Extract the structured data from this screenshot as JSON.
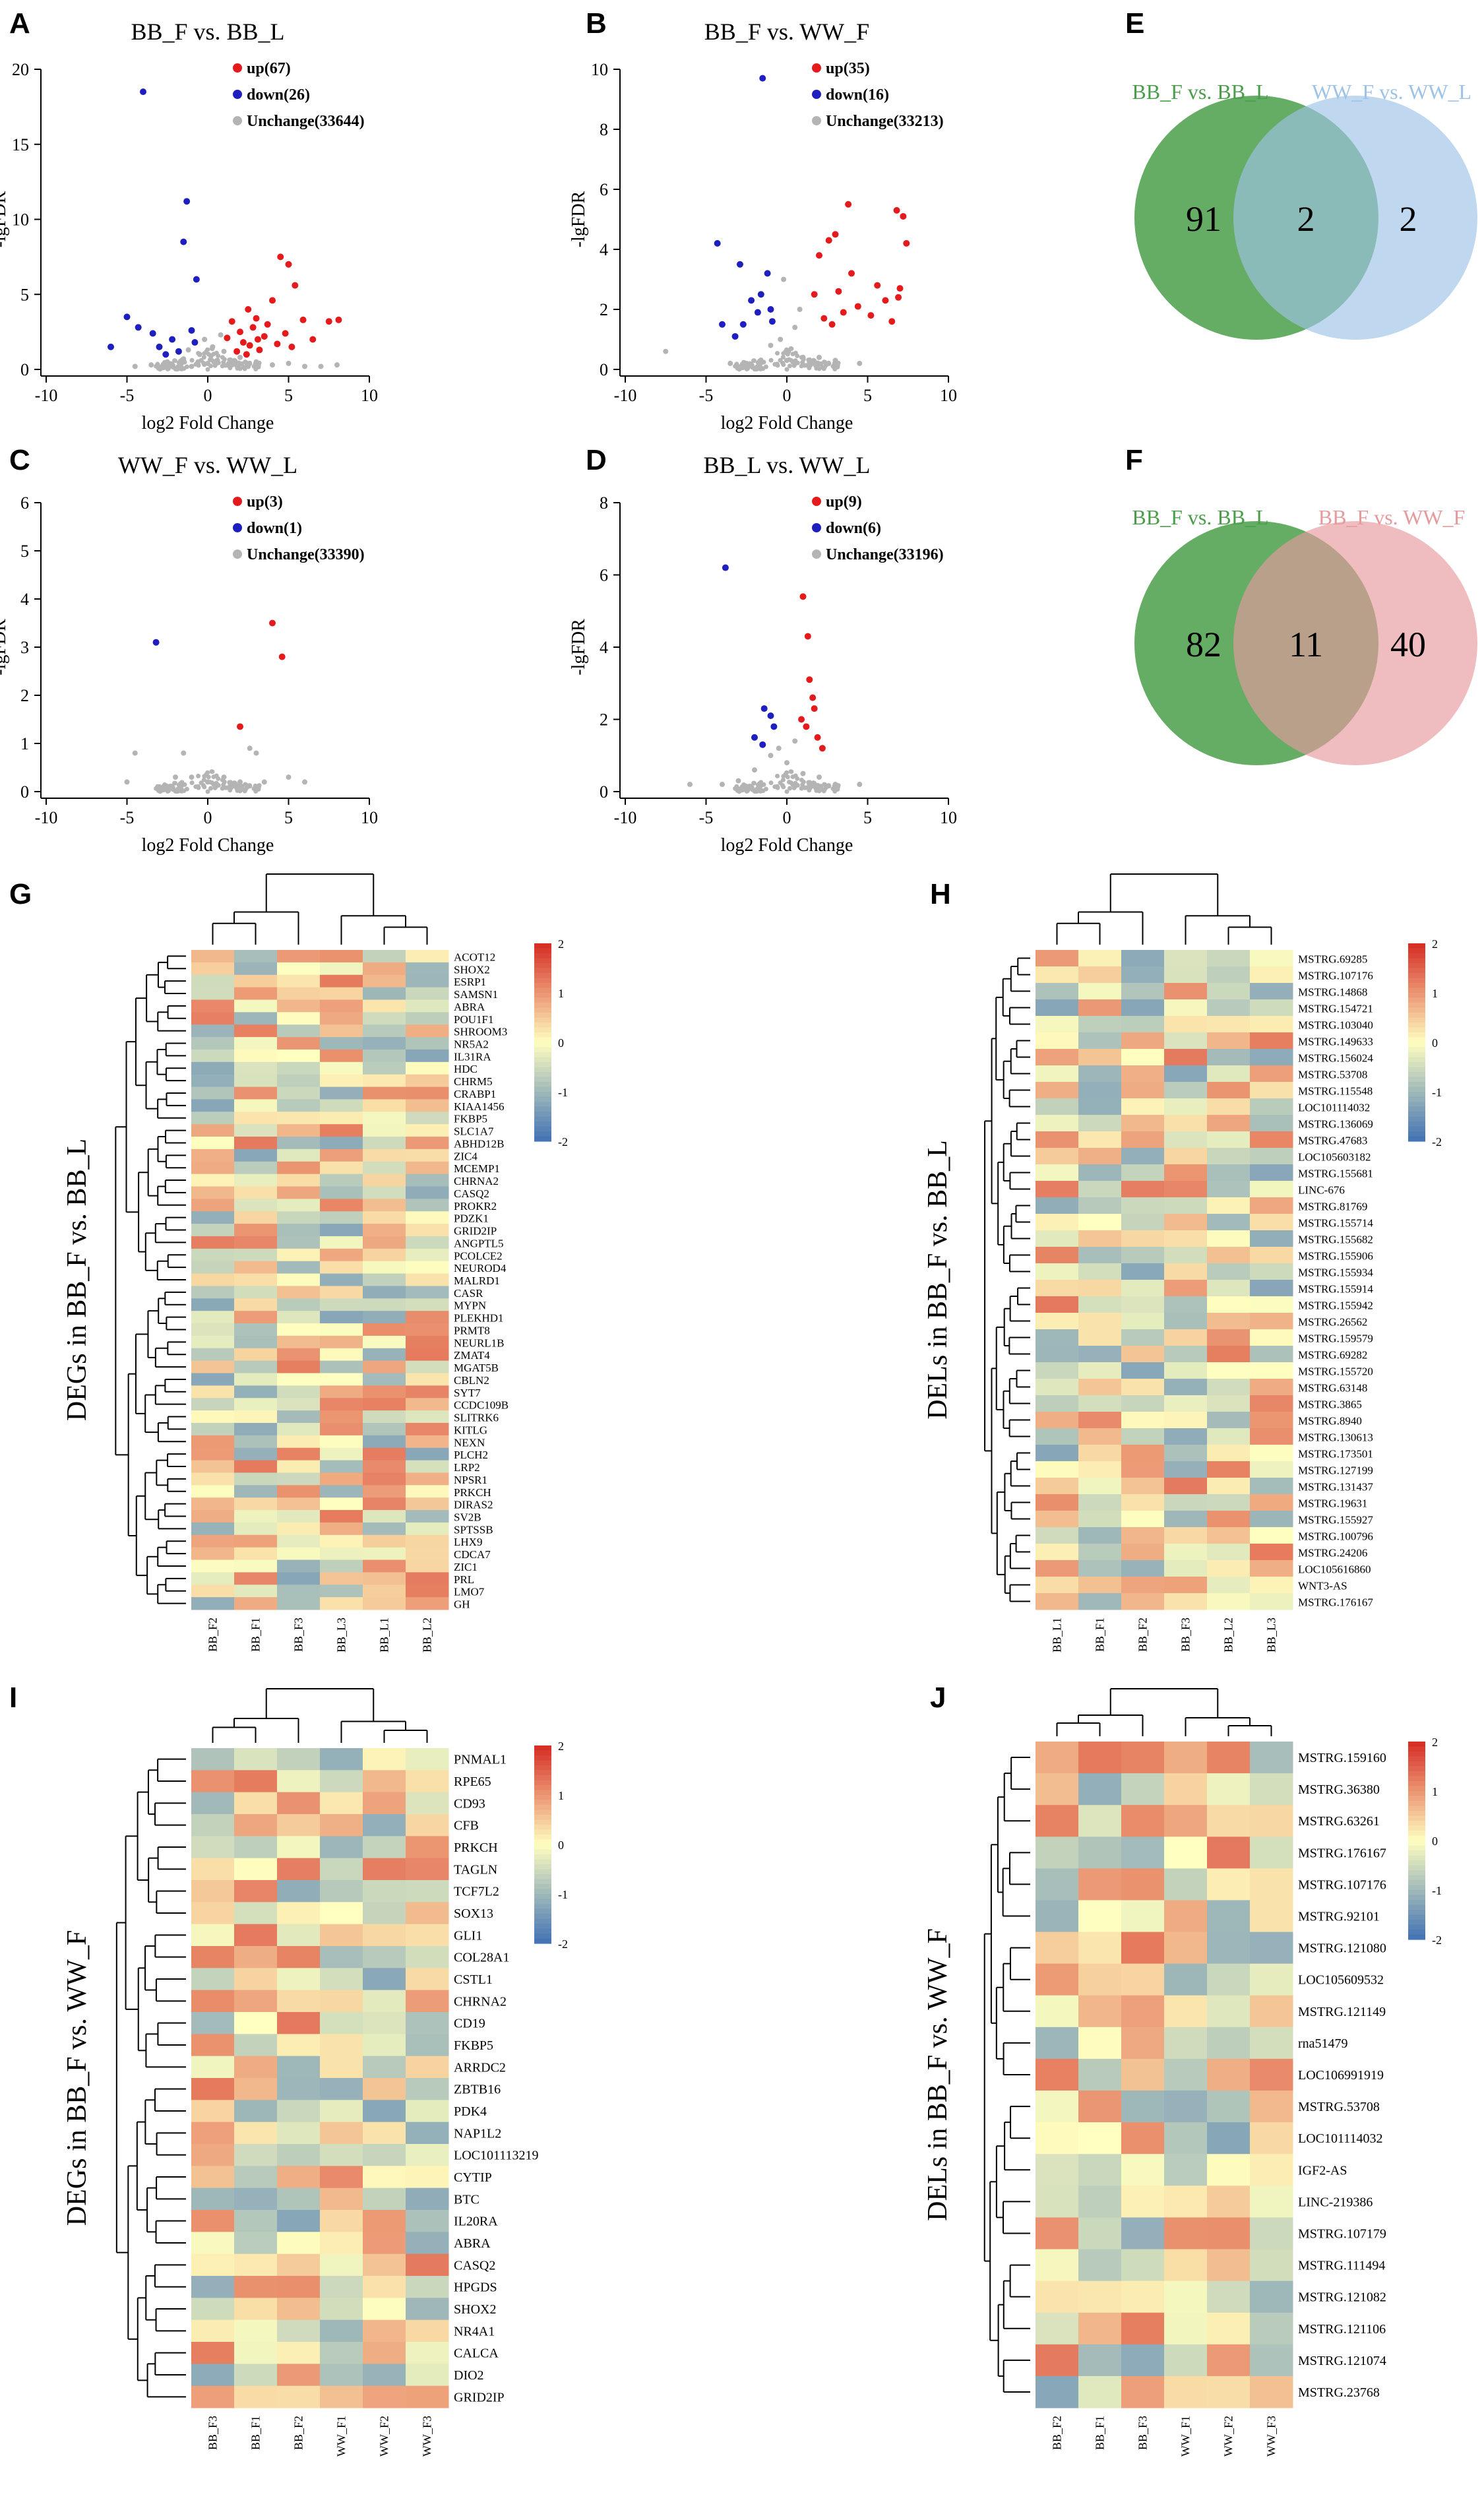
{
  "colors": {
    "up": "#e41a1c",
    "down": "#1f1fbf",
    "unchange": "#b4b4b4",
    "venn_green": "#4a9e4a",
    "venn_blue": "#9ec3e6",
    "venn_pink": "#e69a9e",
    "heat_high": "#d73027",
    "heat_mid": "#ffffbf",
    "heat_low": "#4575b4"
  },
  "chart_data": [
    {
      "panel": "A",
      "type": "scatter",
      "title": "BB_F vs. BB_L",
      "xlabel": "log2 Fold Change",
      "ylabel": "-lgFDR",
      "xlim": [
        -10,
        10
      ],
      "ylim": [
        0,
        20
      ],
      "xticks": [
        -10,
        -5,
        0,
        5,
        10
      ],
      "yticks": [
        0,
        5,
        10,
        15,
        20
      ],
      "legend": [
        {
          "key": "up",
          "label": "up(67)"
        },
        {
          "key": "down",
          "label": "down(26)"
        },
        {
          "key": "unchange",
          "label": "Unchange(33644)"
        }
      ],
      "series": [
        {
          "name": "up",
          "points": [
            [
              1.5,
              3.2
            ],
            [
              2.0,
              2.5
            ],
            [
              2.5,
              4.0
            ],
            [
              3.0,
              3.4
            ],
            [
              3.5,
              2.2
            ],
            [
              4.0,
              4.6
            ],
            [
              4.5,
              7.5
            ],
            [
              5.0,
              7.0
            ],
            [
              5.4,
              5.6
            ],
            [
              5.9,
              3.3
            ],
            [
              6.5,
              2.0
            ],
            [
              7.5,
              3.2
            ],
            [
              8.1,
              3.3
            ],
            [
              2.2,
              1.8
            ],
            [
              3.2,
              1.3
            ],
            [
              1.2,
              2.1
            ],
            [
              2.8,
              2.8
            ],
            [
              4.3,
              1.7
            ],
            [
              3.7,
              3.0
            ],
            [
              1.8,
              1.2
            ],
            [
              2.4,
              1.0
            ],
            [
              4.8,
              2.4
            ],
            [
              5.2,
              1.5
            ],
            [
              3.1,
              2.0
            ],
            [
              2.6,
              1.6
            ]
          ]
        },
        {
          "name": "down",
          "points": [
            [
              -4.0,
              18.5
            ],
            [
              -1.3,
              11.2
            ],
            [
              -1.5,
              8.5
            ],
            [
              -0.7,
              6.0
            ],
            [
              -5.0,
              3.5
            ],
            [
              -4.3,
              2.8
            ],
            [
              -6.0,
              1.5
            ],
            [
              -3.4,
              2.4
            ],
            [
              -2.2,
              2.0
            ],
            [
              -3.0,
              1.5
            ],
            [
              -1.0,
              2.6
            ],
            [
              -2.6,
              1.0
            ],
            [
              -0.8,
              1.8
            ],
            [
              -1.8,
              1.2
            ]
          ]
        },
        {
          "name": "unchange",
          "points": [
            [
              -3.5,
              0.3
            ],
            [
              -2.5,
              0.5
            ],
            [
              -1.5,
              0.7
            ],
            [
              -1.0,
              0.2
            ],
            [
              -0.5,
              1.0
            ],
            [
              0.0,
              0.4
            ],
            [
              0.3,
              1.5
            ],
            [
              0.6,
              0.6
            ],
            [
              1.0,
              1.2
            ],
            [
              1.5,
              0.3
            ],
            [
              2.0,
              0.8
            ],
            [
              2.5,
              0.2
            ],
            [
              3.0,
              0.5
            ],
            [
              4.0,
              0.3
            ],
            [
              5.0,
              0.4
            ],
            [
              6.0,
              0.2
            ],
            [
              -4.5,
              0.2
            ],
            [
              -0.2,
              2.0
            ],
            [
              0.8,
              2.3
            ],
            [
              -0.6,
              0.5
            ],
            [
              0.2,
              0.9
            ],
            [
              1.3,
              0.4
            ],
            [
              -1.2,
              1.3
            ],
            [
              7.0,
              0.2
            ],
            [
              8.0,
              0.3
            ]
          ]
        }
      ]
    },
    {
      "panel": "B",
      "type": "scatter",
      "title": "BB_F vs. WW_F",
      "xlabel": "log2 Fold Change",
      "ylabel": "-lgFDR",
      "xlim": [
        -10,
        10
      ],
      "ylim": [
        0,
        10
      ],
      "xticks": [
        -10,
        -5,
        0,
        5,
        10
      ],
      "yticks": [
        0,
        2,
        4,
        6,
        8,
        10
      ],
      "legend": [
        {
          "key": "up",
          "label": "up(35)"
        },
        {
          "key": "down",
          "label": "down(16)"
        },
        {
          "key": "unchange",
          "label": "Unchange(33213)"
        }
      ],
      "series": [
        {
          "name": "up",
          "points": [
            [
              6.8,
              5.3
            ],
            [
              7.2,
              5.1
            ],
            [
              3.8,
              5.5
            ],
            [
              7.4,
              4.2
            ],
            [
              2.6,
              4.3
            ],
            [
              3.0,
              4.5
            ],
            [
              7.0,
              2.7
            ],
            [
              6.9,
              2.4
            ],
            [
              6.5,
              1.6
            ],
            [
              5.2,
              1.8
            ],
            [
              4.4,
              2.1
            ],
            [
              2.0,
              3.8
            ],
            [
              3.5,
              1.9
            ],
            [
              1.7,
              2.5
            ],
            [
              2.3,
              1.7
            ],
            [
              4.0,
              3.2
            ],
            [
              3.2,
              2.6
            ],
            [
              6.1,
              2.3
            ],
            [
              5.6,
              2.8
            ],
            [
              2.8,
              1.5
            ]
          ]
        },
        {
          "name": "down",
          "points": [
            [
              -1.5,
              9.7
            ],
            [
              -4.3,
              4.2
            ],
            [
              -1.2,
              3.2
            ],
            [
              -1.6,
              2.5
            ],
            [
              -2.2,
              2.3
            ],
            [
              -4.0,
              1.5
            ],
            [
              -3.2,
              1.1
            ],
            [
              -2.7,
              1.5
            ],
            [
              -1.0,
              2.0
            ],
            [
              -0.9,
              1.6
            ],
            [
              -2.9,
              3.5
            ],
            [
              -1.8,
              1.9
            ]
          ]
        },
        {
          "name": "unchange",
          "points": [
            [
              -0.4,
              1.0
            ],
            [
              0.1,
              0.6
            ],
            [
              0.5,
              1.4
            ],
            [
              1.0,
              0.4
            ],
            [
              -1.0,
              0.8
            ],
            [
              -1.6,
              0.3
            ],
            [
              2.0,
              0.4
            ],
            [
              -2.5,
              0.2
            ],
            [
              3.0,
              0.3
            ],
            [
              0.8,
              2.0
            ],
            [
              -0.2,
              3.0
            ],
            [
              0.0,
              0.3
            ],
            [
              -7.5,
              0.6
            ],
            [
              4.5,
              0.2
            ],
            [
              -3.5,
              0.2
            ]
          ]
        }
      ]
    },
    {
      "panel": "C",
      "type": "scatter",
      "title": "WW_F vs. WW_L",
      "xlabel": "log2 Fold Change",
      "ylabel": "-lgFDR",
      "xlim": [
        -10,
        10
      ],
      "ylim": [
        0,
        6
      ],
      "xticks": [
        -10,
        -5,
        0,
        5,
        10
      ],
      "yticks": [
        0,
        1,
        2,
        3,
        4,
        5,
        6
      ],
      "legend": [
        {
          "key": "up",
          "label": "up(3)"
        },
        {
          "key": "down",
          "label": "down(1)"
        },
        {
          "key": "unchange",
          "label": "Unchange(33390)"
        }
      ],
      "series": [
        {
          "name": "up",
          "points": [
            [
              4.0,
              3.5
            ],
            [
              4.6,
              2.8
            ],
            [
              2.0,
              1.35
            ]
          ]
        },
        {
          "name": "down",
          "points": [
            [
              -3.2,
              3.1
            ]
          ]
        },
        {
          "name": "unchange",
          "points": [
            [
              -4.5,
              0.8
            ],
            [
              -1.5,
              0.8
            ],
            [
              2.6,
              0.9
            ],
            [
              3.0,
              0.8
            ],
            [
              -2.0,
              0.3
            ],
            [
              0.0,
              0.2
            ],
            [
              1.0,
              0.3
            ],
            [
              -1.0,
              0.3
            ],
            [
              2.0,
              0.2
            ],
            [
              3.5,
              0.2
            ],
            [
              5.0,
              0.3
            ],
            [
              6.0,
              0.2
            ],
            [
              -5.0,
              0.2
            ],
            [
              -3.0,
              0.1
            ]
          ]
        }
      ]
    },
    {
      "panel": "D",
      "type": "scatter",
      "title": "BB_L vs. WW_L",
      "xlabel": "log2 Fold Change",
      "ylabel": "-lgFDR",
      "xlim": [
        -10,
        10
      ],
      "ylim": [
        0,
        8
      ],
      "xticks": [
        -10,
        -5,
        0,
        5,
        10
      ],
      "yticks": [
        0,
        2,
        4,
        6,
        8
      ],
      "legend": [
        {
          "key": "up",
          "label": "up(9)"
        },
        {
          "key": "down",
          "label": "down(6)"
        },
        {
          "key": "unchange",
          "label": "Unchange(33196)"
        }
      ],
      "series": [
        {
          "name": "up",
          "points": [
            [
              1.0,
              5.4
            ],
            [
              1.3,
              4.3
            ],
            [
              1.4,
              3.1
            ],
            [
              1.6,
              2.6
            ],
            [
              1.7,
              2.3
            ],
            [
              0.9,
              2.0
            ],
            [
              1.2,
              1.8
            ],
            [
              2.2,
              1.2
            ],
            [
              1.9,
              1.5
            ]
          ]
        },
        {
          "name": "down",
          "points": [
            [
              -3.8,
              6.2
            ],
            [
              -1.4,
              2.3
            ],
            [
              -1.0,
              2.1
            ],
            [
              -2.0,
              1.5
            ],
            [
              -1.5,
              1.3
            ],
            [
              -0.8,
              1.8
            ]
          ]
        },
        {
          "name": "unchange",
          "points": [
            [
              -2.0,
              0.6
            ],
            [
              -1.0,
              1.0
            ],
            [
              0.0,
              0.8
            ],
            [
              1.0,
              0.5
            ],
            [
              2.0,
              0.4
            ],
            [
              -3.0,
              0.3
            ],
            [
              3.0,
              0.2
            ],
            [
              -4.0,
              0.2
            ],
            [
              4.5,
              0.2
            ],
            [
              0.5,
              1.4
            ],
            [
              -0.5,
              1.2
            ],
            [
              -6.0,
              0.2
            ]
          ]
        }
      ]
    },
    {
      "panel": "E",
      "type": "venn",
      "sets": [
        {
          "label": "BB_F vs. BB_L",
          "count": 91,
          "color": "#4a9e4a"
        },
        {
          "label": "WW_F vs. WW_L",
          "count": 2,
          "color": "#9ec3e6"
        }
      ],
      "intersection": 2
    },
    {
      "panel": "F",
      "type": "venn",
      "sets": [
        {
          "label": "BB_F vs. BB_L",
          "count": 82,
          "color": "#4a9e4a"
        },
        {
          "label": "BB_F vs. WW_F",
          "count": 40,
          "color": "#e69a9e"
        }
      ],
      "intersection": 11
    },
    {
      "panel": "G",
      "type": "heatmap",
      "ylabel": "DEGs in BB_F vs. BB_L",
      "columns": [
        "BB_F2",
        "BB_F1",
        "BB_F3",
        "BB_L3",
        "BB_L1",
        "BB_L2"
      ],
      "rows": [
        "ACOT12",
        "SHOX2",
        "ESRP1",
        "SAMSN1",
        "ABRA",
        "POU1F1",
        "SHROOM3",
        "NR5A2",
        "IL31RA",
        "HDC",
        "CHRM5",
        "CRABP1",
        "KIAA1456",
        "FKBP5",
        "SLC1A7",
        "ABHD12B",
        "ZIC4",
        "MCEMP1",
        "CHRNA2",
        "CASQ2",
        "PROKR2",
        "PDZK1",
        "GRID2IP",
        "ANGPTL5",
        "PCOLCE2",
        "NEUROD4",
        "MALRD1",
        "CASR",
        "MYPN",
        "PLEKHD1",
        "PRMT8",
        "NEURL1B",
        "ZMAT4",
        "MGAT5B",
        "CBLN2",
        "SYT7",
        "CCDC109B",
        "SLITRK6",
        "KITLG",
        "NEXN",
        "PLCH2",
        "LRP2",
        "NPSR1",
        "PRKCH",
        "DIRAS2",
        "SV2B",
        "SPTSSB",
        "LHX9",
        "CDCA7",
        "ZIC1",
        "PRL",
        "LMO7",
        "GH"
      ],
      "colorbar": {
        "min": -2,
        "max": 2,
        "ticks": [
          2,
          1,
          0,
          -1,
          -2
        ]
      }
    },
    {
      "panel": "H",
      "type": "heatmap",
      "ylabel": "DELs in BB_F vs. BB_L",
      "columns": [
        "BB_L1",
        "BB_F1",
        "BB_F2",
        "BB_F3",
        "BB_L2",
        "BB_L3"
      ],
      "rows": [
        "MSTRG.69285",
        "MSTRG.107176",
        "MSTRG.14868",
        "MSTRG.154721",
        "MSTRG.103040",
        "MSTRG.149633",
        "MSTRG.156024",
        "MSTRG.53708",
        "MSTRG.115548",
        "LOC101114032",
        "MSTRG.136069",
        "MSTRG.47683",
        "LOC105603182",
        "MSTRG.155681",
        "LINC-676",
        "MSTRG.81769",
        "MSTRG.155714",
        "MSTRG.155682",
        "MSTRG.155906",
        "MSTRG.155934",
        "MSTRG.155914",
        "MSTRG.155942",
        "MSTRG.26562",
        "MSTRG.159579",
        "MSTRG.69282",
        "MSTRG.155720",
        "MSTRG.63148",
        "MSTRG.3865",
        "MSTRG.8940",
        "MSTRG.130613",
        "MSTRG.173501",
        "MSTRG.127199",
        "MSTRG.131437",
        "MSTRG.19631",
        "MSTRG.155927",
        "MSTRG.100796",
        "MSTRG.24206",
        "LOC105616860",
        "WNT3-AS",
        "MSTRG.176167"
      ],
      "colorbar": {
        "min": -2,
        "max": 2,
        "ticks": [
          2,
          1,
          0,
          -1,
          -2
        ]
      }
    },
    {
      "panel": "I",
      "type": "heatmap",
      "ylabel": "DEGs in BB_F vs. WW_F",
      "columns": [
        "BB_F3",
        "BB_F1",
        "BB_F2",
        "WW_F1",
        "WW_F2",
        "WW_F3"
      ],
      "rows": [
        "PNMAL1",
        "RPE65",
        "CD93",
        "CFB",
        "PRKCH",
        "TAGLN",
        "TCF7L2",
        "SOX13",
        "GLI1",
        "COL28A1",
        "CSTL1",
        "CHRNA2",
        "CD19",
        "FKBP5",
        "ARRDC2",
        "ZBTB16",
        "PDK4",
        "NAP1L2",
        "LOC101113219",
        "CYTIP",
        "BTC",
        "IL20RA",
        "ABRA",
        "CASQ2",
        "HPGDS",
        "SHOX2",
        "NR4A1",
        "CALCA",
        "DIO2",
        "GRID2IP"
      ],
      "colorbar": {
        "min": -2,
        "max": 2,
        "ticks": [
          2,
          1,
          0,
          -1,
          -2
        ]
      }
    },
    {
      "panel": "J",
      "type": "heatmap",
      "ylabel": "DELs in BB_F vs. WW_F",
      "columns": [
        "BB_F2",
        "BB_F1",
        "BB_F3",
        "WW_F1",
        "WW_F2",
        "WW_F3"
      ],
      "rows": [
        "MSTRG.159160",
        "MSTRG.36380",
        "MSTRG.63261",
        "MSTRG.176167",
        "MSTRG.107176",
        "MSTRG.92101",
        "MSTRG.121080",
        "LOC105609532",
        "MSTRG.121149",
        "rna51479",
        "LOC106991919",
        "MSTRG.53708",
        "LOC101114032",
        "IGF2-AS",
        "LINC-219386",
        "MSTRG.107179",
        "MSTRG.111494",
        "MSTRG.121082",
        "MSTRG.121106",
        "MSTRG.121074",
        "MSTRG.23768"
      ],
      "colorbar": {
        "min": -2,
        "max": 2,
        "ticks": [
          2,
          1,
          0,
          -1,
          -2
        ]
      }
    }
  ]
}
